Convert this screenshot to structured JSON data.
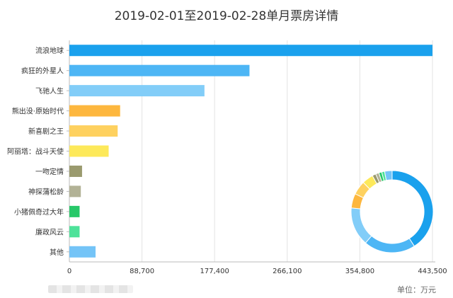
{
  "title": "2019-02-01至2019-02-28单月票房详情",
  "unit_label": "单位：万元",
  "chart_data": {
    "type": "bar",
    "orientation": "horizontal",
    "title": "2019-02-01至2019-02-28单月票房详情",
    "categories": [
      "流浪地球",
      "疯狂的外星人",
      "飞驰人生",
      "熊出没·原始时代",
      "新喜剧之王",
      "阿丽塔：战斗天使",
      "一吻定情",
      "神探蒲松龄",
      "小猪佩奇过大年",
      "廉政风云",
      "其他"
    ],
    "values": [
      443500,
      220000,
      165000,
      62000,
      59000,
      48000,
      15500,
      14000,
      12500,
      12500,
      32000
    ],
    "colors": [
      "#1aa1ed",
      "#4db6f5",
      "#82cdf8",
      "#fdb73e",
      "#fed15f",
      "#fde95a",
      "#9a9a6e",
      "#b2b296",
      "#27c869",
      "#4ee29a",
      "#74c4f7"
    ],
    "xlim": [
      0,
      443500
    ],
    "xticks": [
      "0",
      "88,700",
      "177,400",
      "266,100",
      "354,800",
      "443,500"
    ],
    "grid": true,
    "inset": {
      "type": "donut",
      "values": [
        443500,
        220000,
        165000,
        62000,
        59000,
        48000,
        15500,
        14000,
        12500,
        12500,
        32000
      ],
      "colors": [
        "#1aa1ed",
        "#4db6f5",
        "#82cdf8",
        "#fdb73e",
        "#fed15f",
        "#fde95a",
        "#9a9a6e",
        "#b2b296",
        "#27c869",
        "#4ee29a",
        "#74c4f7"
      ],
      "placement": "bottom-right"
    }
  }
}
